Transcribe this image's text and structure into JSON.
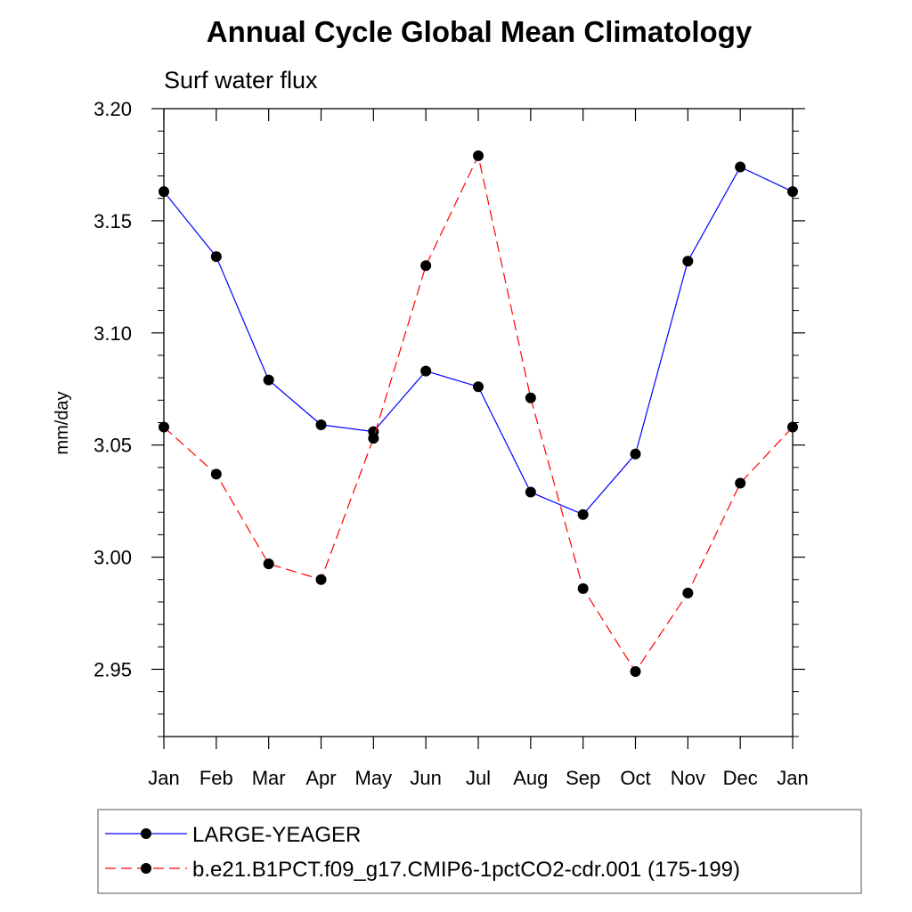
{
  "chart_data": {
    "type": "line",
    "title": "Annual Cycle Global Mean Climatology",
    "subtitle": "Surf water flux",
    "xlabel": "",
    "ylabel": "mm/day",
    "categories": [
      "Jan",
      "Feb",
      "Mar",
      "Apr",
      "May",
      "Jun",
      "Jul",
      "Aug",
      "Sep",
      "Oct",
      "Nov",
      "Dec",
      "Jan"
    ],
    "ylim": [
      2.92,
      3.2
    ],
    "yticks": [
      2.95,
      3.0,
      3.05,
      3.1,
      3.15,
      3.2
    ],
    "ytick_labels": [
      "2.95",
      "3.00",
      "3.05",
      "3.10",
      "3.15",
      "3.20"
    ],
    "grid": false,
    "legend_position": "bottom",
    "series": [
      {
        "name": "LARGE-YEAGER",
        "color": "#0000ff",
        "dashed": false,
        "values": [
          3.163,
          3.134,
          3.079,
          3.059,
          3.056,
          3.083,
          3.076,
          3.029,
          3.019,
          3.046,
          3.132,
          3.174,
          3.163
        ]
      },
      {
        "name": "b.e21.B1PCT.f09_g17.CMIP6-1pctCO2-cdr.001 (175-199)",
        "color": "#ff0000",
        "dashed": true,
        "values": [
          3.058,
          3.037,
          2.997,
          2.99,
          3.053,
          3.13,
          3.179,
          3.071,
          2.986,
          2.949,
          2.984,
          3.033,
          3.058
        ]
      }
    ]
  }
}
